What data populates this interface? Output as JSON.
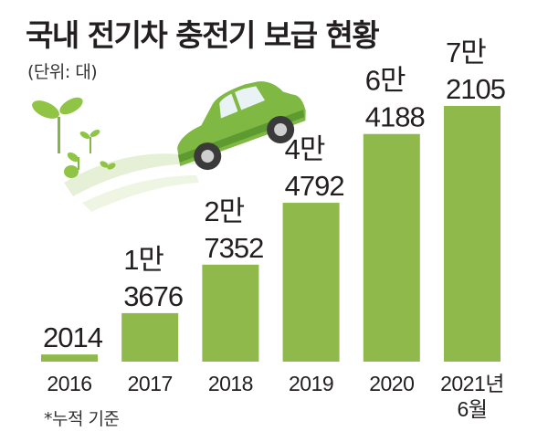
{
  "title": "국내 전기차 충전기 보급 현황",
  "unit_note": "(단위: 대)",
  "footnote": "*누적 기준",
  "colors": {
    "bar": "#8fb94b",
    "text": "#231f20",
    "car": "#7fb843",
    "sprout": "#8fc445"
  },
  "chart_data": {
    "type": "bar",
    "title": "국내 전기차 충전기 보급 현황",
    "ylabel": "",
    "xlabel": "",
    "unit": "대",
    "categories": [
      "2016",
      "2017",
      "2018",
      "2019",
      "2020",
      "2021년 6월"
    ],
    "category_lines": [
      [
        "2016"
      ],
      [
        "2017"
      ],
      [
        "2018"
      ],
      [
        "2019"
      ],
      [
        "2020"
      ],
      [
        "2021년",
        "6월"
      ]
    ],
    "values": [
      2014,
      13676,
      27352,
      44792,
      64188,
      72105
    ],
    "value_labels": [
      [
        "2014"
      ],
      [
        "1만",
        "3676"
      ],
      [
        "2만",
        "7352"
      ],
      [
        "4만",
        "4792"
      ],
      [
        "6만",
        "4188"
      ],
      [
        "7만",
        "2105"
      ]
    ],
    "grid": false,
    "legend": "none",
    "note": "*누적 기준"
  }
}
